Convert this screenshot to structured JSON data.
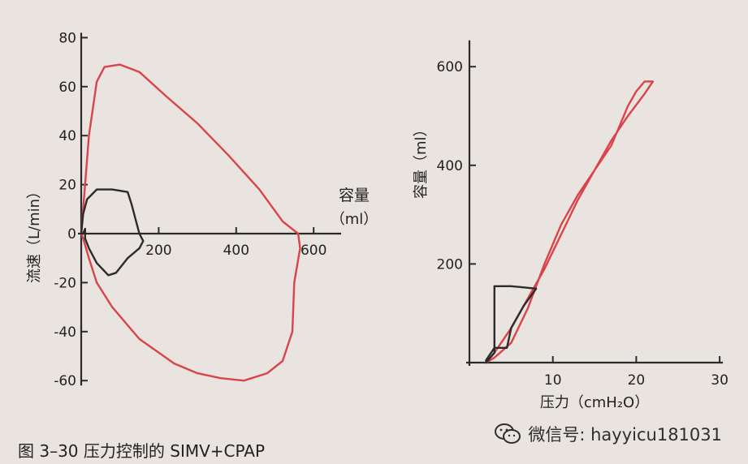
{
  "figure": {
    "caption": "图 3–30   压力控制的 SIMV+CPAP"
  },
  "watermark": {
    "text": "微信号: hayyicu181031",
    "icon": "wechat-icon"
  },
  "colors": {
    "paper": "#e9e4df",
    "axis": "#2b2b2b",
    "red_loop": "#d9444a",
    "black_loop": "#2b2b2b"
  },
  "chart_data": [
    {
      "type": "line",
      "title": "",
      "xlabel": "容量",
      "xlabel_unit": "（ml）",
      "ylabel": "流速（L/min）",
      "xlim": [
        0,
        650
      ],
      "ylim": [
        -60,
        80
      ],
      "x_ticks": [
        200,
        400,
        600
      ],
      "y_ticks": [
        80,
        60,
        40,
        20,
        0,
        -20,
        -40,
        -60
      ],
      "grid": false,
      "series": [
        {
          "color": "red",
          "points": [
            [
              0,
              0
            ],
            [
              5,
              10
            ],
            [
              20,
              40
            ],
            [
              40,
              62
            ],
            [
              60,
              68
            ],
            [
              100,
              69
            ],
            [
              150,
              66
            ],
            [
              220,
              56
            ],
            [
              300,
              45
            ],
            [
              380,
              32
            ],
            [
              460,
              18
            ],
            [
              520,
              5
            ],
            [
              560,
              0
            ],
            [
              565,
              -6
            ],
            [
              550,
              -20
            ],
            [
              545,
              -40
            ],
            [
              520,
              -52
            ],
            [
              480,
              -57
            ],
            [
              420,
              -60
            ],
            [
              360,
              -59
            ],
            [
              300,
              -57
            ],
            [
              240,
              -53
            ],
            [
              150,
              -43
            ],
            [
              80,
              -30
            ],
            [
              40,
              -20
            ],
            [
              20,
              -10
            ],
            [
              5,
              -2
            ],
            [
              0,
              0
            ]
          ]
        },
        {
          "color": "black",
          "points": [
            [
              0,
              0
            ],
            [
              5,
              8
            ],
            [
              15,
              14
            ],
            [
              40,
              18
            ],
            [
              80,
              18
            ],
            [
              120,
              17
            ],
            [
              130,
              12
            ],
            [
              140,
              6
            ],
            [
              150,
              0
            ],
            [
              160,
              -3
            ],
            [
              150,
              -6
            ],
            [
              120,
              -10
            ],
            [
              90,
              -16
            ],
            [
              70,
              -17
            ],
            [
              40,
              -12
            ],
            [
              20,
              -6
            ],
            [
              10,
              -2
            ],
            [
              10,
              2
            ],
            [
              5,
              0
            ],
            [
              0,
              0
            ]
          ]
        }
      ]
    },
    {
      "type": "line",
      "title": "",
      "xlabel": "压力（cmH₂O）",
      "ylabel": "容量（ml）",
      "xlim": [
        0,
        30
      ],
      "ylim": [
        0,
        650
      ],
      "x_ticks": [
        10,
        20,
        30
      ],
      "y_ticks": [
        200,
        400,
        600
      ],
      "grid": false,
      "series": [
        {
          "color": "red",
          "points": [
            [
              2,
              0
            ],
            [
              3,
              10
            ],
            [
              5,
              40
            ],
            [
              7,
              110
            ],
            [
              9,
              200
            ],
            [
              11,
              280
            ],
            [
              13,
              340
            ],
            [
              15,
              390
            ],
            [
              17,
              440
            ],
            [
              18,
              480
            ],
            [
              19,
              520
            ],
            [
              20,
              550
            ],
            [
              21,
              570
            ],
            [
              22,
              570
            ],
            [
              21,
              545
            ],
            [
              19,
              500
            ],
            [
              17,
              450
            ],
            [
              15,
              390
            ],
            [
              13,
              330
            ],
            [
              11,
              260
            ],
            [
              9,
              190
            ],
            [
              7,
              130
            ],
            [
              5,
              70
            ],
            [
              3,
              20
            ],
            [
              2,
              0
            ]
          ]
        },
        {
          "color": "black",
          "points": [
            [
              2,
              0
            ],
            [
              3,
              20
            ],
            [
              3,
              60
            ],
            [
              3,
              100
            ],
            [
              3,
              155
            ],
            [
              5,
              155
            ],
            [
              8,
              150
            ],
            [
              6.5,
              115
            ],
            [
              5,
              70
            ],
            [
              4.5,
              30
            ],
            [
              3,
              30
            ],
            [
              2,
              5
            ],
            [
              2,
              0
            ]
          ]
        }
      ]
    }
  ]
}
